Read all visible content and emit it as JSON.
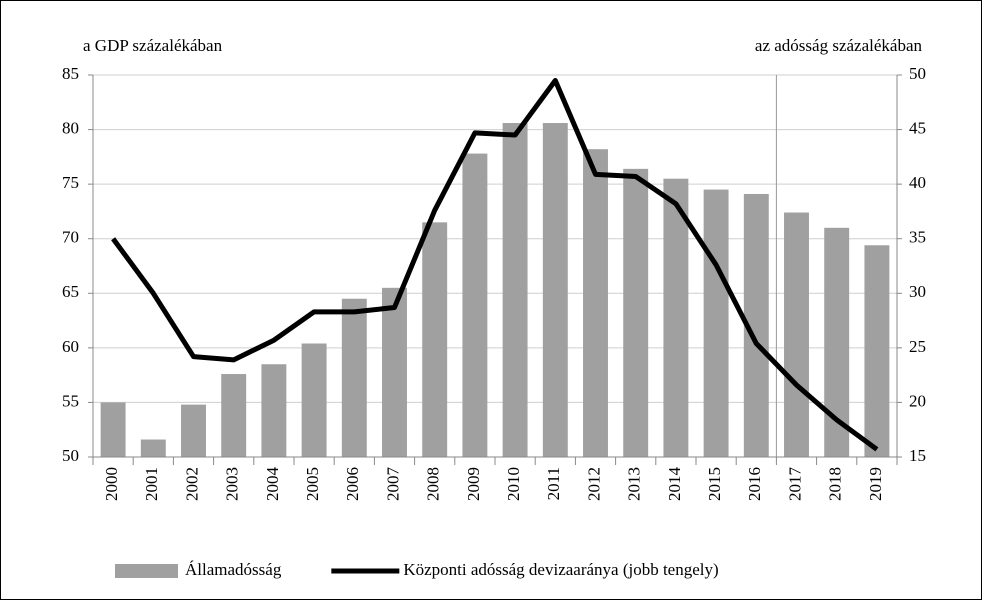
{
  "chart_data": {
    "type": "bar_line",
    "y_label": "a GDP százalékában",
    "y2_label": "az adósság százalékában",
    "categories": [
      "2000",
      "2001",
      "2002",
      "2003",
      "2004",
      "2005",
      "2006",
      "2007",
      "2008",
      "2009",
      "2010",
      "2011",
      "2012",
      "2013",
      "2014",
      "2015",
      "2016",
      "2017",
      "2018",
      "2019"
    ],
    "series": [
      {
        "name": "Államadósság",
        "type": "bar",
        "color": "#a0a0a0",
        "values": [
          55.0,
          51.6,
          54.8,
          57.6,
          58.5,
          60.4,
          64.5,
          65.5,
          71.5,
          77.8,
          80.6,
          80.6,
          78.2,
          76.4,
          75.5,
          74.5,
          74.1,
          72.4,
          71.0,
          69.4
        ]
      },
      {
        "name": "Központi adósság devizaaránya (jobb tengely)",
        "type": "line",
        "axis": "y2",
        "color": "#000000",
        "values": [
          35.0,
          30.0,
          24.2,
          23.9,
          25.7,
          28.3,
          28.3,
          28.7,
          37.6,
          44.7,
          44.5,
          49.5,
          40.9,
          40.7,
          38.2,
          32.6,
          25.4,
          21.6,
          18.4,
          15.7
        ]
      }
    ],
    "ylim": [
      50,
      85
    ],
    "yticks": [
      50,
      55,
      60,
      65,
      70,
      75,
      80,
      85
    ],
    "y2lim": [
      15,
      50
    ],
    "y2ticks": [
      15,
      20,
      25,
      30,
      35,
      40,
      45,
      50
    ],
    "grid": true,
    "legend": "bottom"
  }
}
